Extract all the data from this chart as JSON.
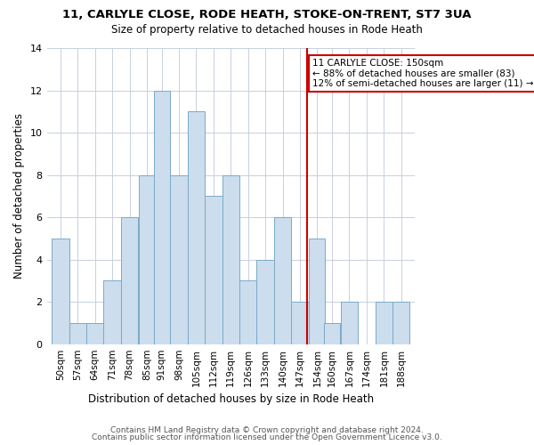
{
  "title": "11, CARLYLE CLOSE, RODE HEATH, STOKE-ON-TRENT, ST7 3UA",
  "subtitle": "Size of property relative to detached houses in Rode Heath",
  "xlabel": "Distribution of detached houses by size in Rode Heath",
  "ylabel": "Number of detached properties",
  "bar_color": "#ccdded",
  "bar_edge_color": "#7aaac8",
  "grid_color": "#c8d0e0",
  "background_color": "#ffffff",
  "bin_centers": [
    50,
    57,
    64,
    71,
    78,
    85,
    91,
    98,
    105,
    112,
    119,
    126,
    133,
    140,
    147,
    154,
    160,
    167,
    174,
    181,
    188
  ],
  "bin_labels": [
    "50sqm",
    "57sqm",
    "64sqm",
    "71sqm",
    "78sqm",
    "85sqm",
    "91sqm",
    "98sqm",
    "105sqm",
    "112sqm",
    "119sqm",
    "126sqm",
    "133sqm",
    "140sqm",
    "147sqm",
    "154sqm",
    "160sqm",
    "167sqm",
    "174sqm",
    "181sqm",
    "188sqm"
  ],
  "counts": [
    5,
    1,
    1,
    3,
    6,
    8,
    12,
    8,
    11,
    7,
    8,
    3,
    4,
    6,
    2,
    5,
    1,
    2,
    0,
    2,
    2
  ],
  "property_size": 150,
  "vline_color": "#cc0000",
  "annotation_text": "11 CARLYLE CLOSE: 150sqm\n← 88% of detached houses are smaller (83)\n12% of semi-detached houses are larger (11) →",
  "annotation_box_color": "#ffffff",
  "annotation_box_edge": "#cc0000",
  "ylim": [
    0,
    14
  ],
  "yticks": [
    0,
    2,
    4,
    6,
    8,
    10,
    12,
    14
  ],
  "footer1": "Contains HM Land Registry data © Crown copyright and database right 2024.",
  "footer2": "Contains public sector information licensed under the Open Government Licence v3.0."
}
